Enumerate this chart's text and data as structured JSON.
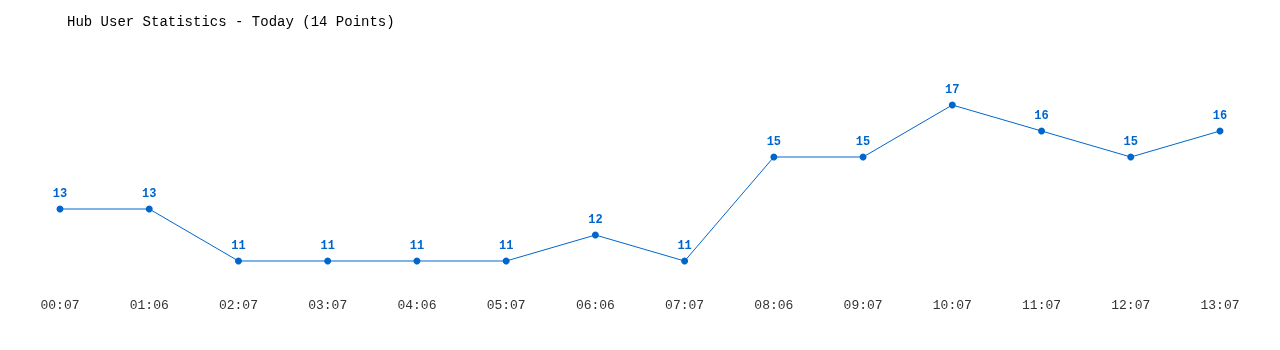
{
  "chart_data": {
    "type": "line",
    "title": "Hub User Statistics - Today (14 Points)",
    "categories": [
      "00:07",
      "01:06",
      "02:07",
      "03:07",
      "04:06",
      "05:07",
      "06:06",
      "07:07",
      "08:06",
      "09:07",
      "10:07",
      "11:07",
      "12:07",
      "13:07"
    ],
    "values": [
      13,
      13,
      11,
      11,
      11,
      11,
      12,
      11,
      15,
      15,
      17,
      16,
      15,
      16
    ],
    "color": "#0066cc",
    "tick_labels": "x",
    "grid": false,
    "marker": "circle",
    "line_style": "solid",
    "data_labels": true
  }
}
